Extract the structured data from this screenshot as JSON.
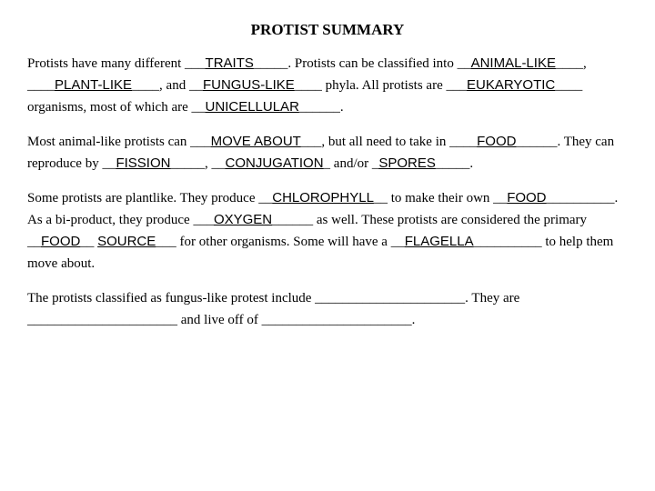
{
  "title": "PROTIST SUMMARY",
  "p1": {
    "t1": "Protists have many different ___",
    "f1": "TRAITS",
    "t2": "_____.  Protists can be classified into __",
    "f2": "ANIMAL-LIKE",
    "t3": "____, ____",
    "f3": "PLANT-LIKE",
    "t4": "____,  and __",
    "f4": "FUNGUS-LIKE",
    "t5": "____ phyla.  All protists are ___",
    "f5": "EUKARYOTIC",
    "t6": "____ organisms, most of which are __",
    "f6": "UNICELLULAR",
    "t7": "______."
  },
  "p2": {
    "t1": "Most animal-like protists can ___",
    "f1": "MOVE ABOUT",
    "t2": "___, but all need to take in ____",
    "f2": "FOOD",
    "t3": "______.  They can reproduce by __",
    "f3": "FISSION",
    "t4": "_____, __",
    "f4": "CONJUGATION",
    "t5": "_ and/or _",
    "f5": "SPORES",
    "t6": "_____."
  },
  "p3": {
    "t1": "Some protists are plantlike.  They produce __",
    "f1": "CHLOROPHYLL",
    "t2": "__ to make their own __",
    "f2": "FOOD",
    "t3": "__________.  As a bi-product, they produce ___",
    "f3": "OXYGEN",
    "t4": "______ as well.  These protists are considered the primary __",
    "f4": "FOOD",
    "t5": "__ ",
    "f5": "SOURCE",
    "t6": "___ for other organisms.  Some will have a __",
    "f6": "FLAGELLA",
    "t7": "__________ to help them move about."
  },
  "p4": {
    "t1": "The protists classified as fungus-like protest include ______________________.  They are ______________________ and live off of ______________________."
  }
}
